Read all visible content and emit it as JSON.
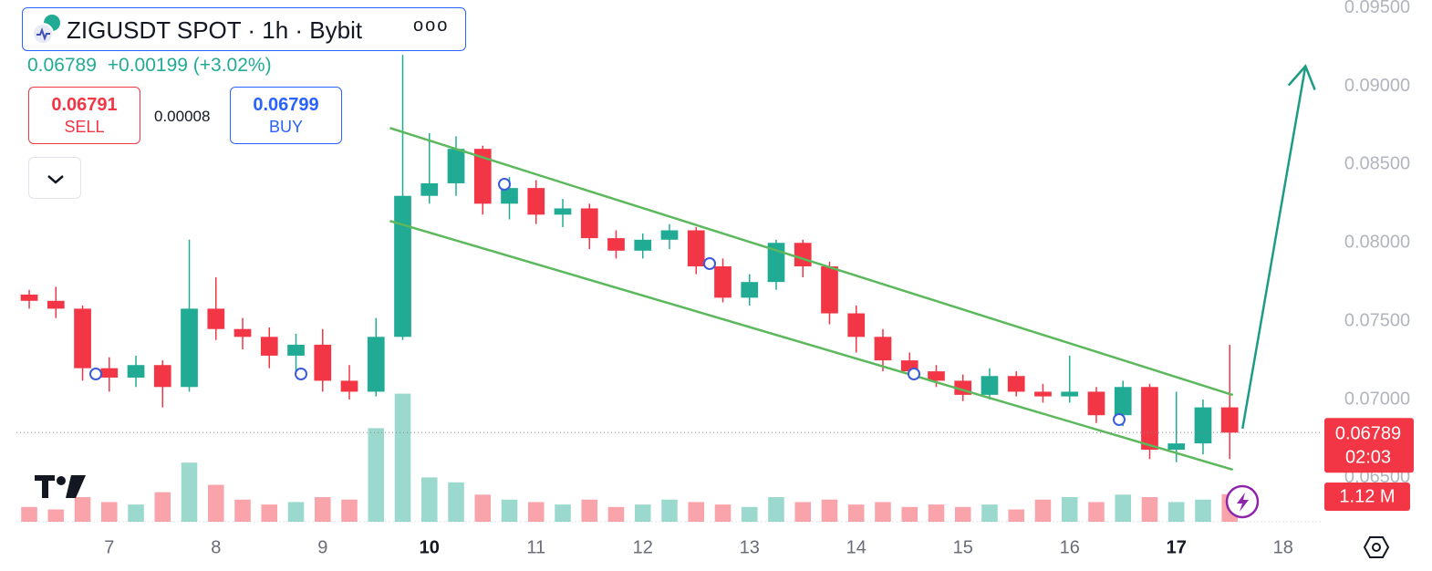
{
  "header": {
    "symbol": "ZIGUSDT SPOT · 1h · Bybit",
    "last": "0.06789",
    "change": "+0.00199 (+3.02%)",
    "sell_price": "0.06791",
    "sell": "SELL",
    "spread": "0.00008",
    "buy_price": "0.06799",
    "buy": "BUY"
  },
  "chart_data": {
    "type": "candlestick",
    "x": [
      6.25,
      6.5,
      6.75,
      7.0,
      7.25,
      7.5,
      7.75,
      8.0,
      8.25,
      8.5,
      8.75,
      9.0,
      9.25,
      9.5,
      9.75,
      10.0,
      10.25,
      10.5,
      10.75,
      11.0,
      11.25,
      11.5,
      11.75,
      12.0,
      12.25,
      12.5,
      12.75,
      13.0,
      13.25,
      13.5,
      13.75,
      14.0,
      14.25,
      14.5,
      14.75,
      15.0,
      15.25,
      15.5,
      15.75,
      16.0,
      16.25,
      16.5,
      16.75,
      17.0,
      17.25,
      17.5
    ],
    "open": [
      0.0767,
      0.0763,
      0.0758,
      0.072,
      0.0714,
      0.0722,
      0.0708,
      0.0758,
      0.0745,
      0.074,
      0.0728,
      0.0735,
      0.0712,
      0.0705,
      0.074,
      0.083,
      0.0838,
      0.086,
      0.0825,
      0.0835,
      0.0818,
      0.0822,
      0.0803,
      0.0795,
      0.0802,
      0.0808,
      0.0785,
      0.0765,
      0.0775,
      0.08,
      0.0785,
      0.0755,
      0.074,
      0.0725,
      0.0718,
      0.0712,
      0.0703,
      0.0715,
      0.0705,
      0.0702,
      0.0705,
      0.069,
      0.0708,
      0.0668,
      0.0672,
      0.0695
    ],
    "high": [
      0.077,
      0.0772,
      0.076,
      0.0727,
      0.0728,
      0.0725,
      0.0802,
      0.0778,
      0.0752,
      0.0746,
      0.0742,
      0.0745,
      0.0722,
      0.0752,
      0.092,
      0.087,
      0.0868,
      0.0862,
      0.0842,
      0.084,
      0.0828,
      0.0825,
      0.0808,
      0.0806,
      0.0812,
      0.081,
      0.079,
      0.078,
      0.0802,
      0.0802,
      0.0788,
      0.076,
      0.0745,
      0.073,
      0.0722,
      0.0716,
      0.072,
      0.0718,
      0.071,
      0.0728,
      0.0708,
      0.0712,
      0.071,
      0.0705,
      0.07,
      0.0735
    ],
    "low": [
      0.0758,
      0.0752,
      0.0712,
      0.0705,
      0.0708,
      0.0695,
      0.0705,
      0.0738,
      0.0732,
      0.072,
      0.0718,
      0.0705,
      0.07,
      0.0702,
      0.0738,
      0.0825,
      0.083,
      0.0818,
      0.0815,
      0.0812,
      0.081,
      0.0796,
      0.079,
      0.079,
      0.0796,
      0.078,
      0.0762,
      0.076,
      0.077,
      0.0778,
      0.0748,
      0.073,
      0.0718,
      0.0714,
      0.0708,
      0.0699,
      0.07,
      0.0702,
      0.0698,
      0.0698,
      0.0685,
      0.0683,
      0.0662,
      0.066,
      0.0665,
      0.0662
    ],
    "close": [
      0.0763,
      0.0758,
      0.072,
      0.0714,
      0.0722,
      0.0708,
      0.0758,
      0.0745,
      0.074,
      0.0728,
      0.0735,
      0.0712,
      0.0705,
      0.074,
      0.083,
      0.0838,
      0.086,
      0.0825,
      0.0835,
      0.0818,
      0.0822,
      0.0803,
      0.0795,
      0.0802,
      0.0808,
      0.0785,
      0.0765,
      0.0775,
      0.08,
      0.0785,
      0.0755,
      0.074,
      0.0725,
      0.0718,
      0.0712,
      0.0703,
      0.0715,
      0.0705,
      0.0702,
      0.0705,
      0.069,
      0.0708,
      0.0668,
      0.0672,
      0.0695,
      0.06789
    ],
    "volume": [
      0.6,
      0.5,
      1.0,
      0.8,
      0.7,
      1.2,
      2.4,
      1.5,
      0.9,
      0.7,
      0.8,
      1.0,
      0.9,
      3.8,
      5.2,
      1.8,
      1.6,
      1.1,
      0.9,
      0.8,
      0.7,
      0.9,
      0.6,
      0.7,
      0.9,
      0.8,
      0.7,
      0.6,
      1.0,
      0.8,
      0.9,
      0.7,
      0.8,
      0.6,
      0.7,
      0.6,
      0.7,
      0.5,
      0.9,
      1.0,
      0.8,
      1.1,
      1.0,
      0.8,
      0.9,
      1.12
    ],
    "up_color": "#22ab94",
    "down_color": "#f23645",
    "xlim": [
      6.13,
      18.37
    ],
    "ylim": [
      0.0622,
      0.0955
    ],
    "xticks": [
      7,
      8,
      9,
      10,
      11,
      12,
      13,
      14,
      15,
      16,
      17,
      18
    ],
    "xticks_bold": [
      10,
      17
    ],
    "yticks": [
      {
        "value": 0.095,
        "label": "0.09500"
      },
      {
        "value": 0.09,
        "label": "0.09000"
      },
      {
        "value": 0.085,
        "label": "0.08500"
      },
      {
        "value": 0.08,
        "label": "0.08000"
      },
      {
        "value": 0.075,
        "label": "0.07500"
      },
      {
        "value": 0.07,
        "label": "0.07000"
      },
      {
        "value": 0.065,
        "label": "0.06500"
      }
    ],
    "last_price": {
      "value": 0.06789,
      "label": "0.06789"
    },
    "countdown": "02:03",
    "volume_label": "1.12 M",
    "lines": [
      {
        "x": [
          9.63,
          17.53
        ],
        "y": [
          0.08733,
          0.07029
        ],
        "color": "#5cb85c"
      },
      {
        "x": [
          9.63,
          17.53
        ],
        "y": [
          0.0814,
          0.06552
        ],
        "color": "#5cb85c"
      },
      {
        "x": [
          17.62,
          18.21
        ],
        "y": [
          0.06814,
          0.09128
        ],
        "color": "#1e9b84",
        "arrow": true
      }
    ]
  }
}
